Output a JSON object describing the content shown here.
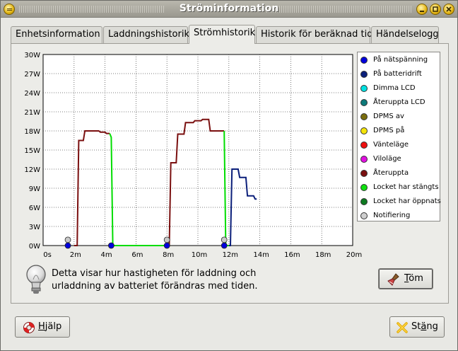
{
  "window": {
    "title": "Ströminformation"
  },
  "tabs": [
    {
      "label": "Enhetsinformation",
      "active": false
    },
    {
      "label": "Laddningshistorik",
      "active": false
    },
    {
      "label": "Strömhistorik",
      "active": true
    },
    {
      "label": "Historik för beräknad tid",
      "active": false
    },
    {
      "label": "Händelselogg",
      "active": false
    }
  ],
  "chart_data": {
    "type": "line",
    "x_tick_labels": [
      "0s",
      "2m",
      "4m",
      "6m",
      "8m",
      "10m",
      "12m",
      "14m",
      "16m",
      "18m",
      "20m"
    ],
    "y_tick_labels": [
      "0W",
      "3W",
      "6W",
      "9W",
      "12W",
      "15W",
      "18W",
      "21W",
      "24W",
      "27W",
      "30W"
    ],
    "xlim_minutes": [
      0,
      20
    ],
    "ylim_watts": [
      0,
      30
    ],
    "grid": true,
    "legend_placement": "right",
    "series": [
      {
        "name": "Återuppta",
        "color": "#7a0f0f",
        "segments": [
          [
            [
              2.0,
              0
            ],
            [
              2.2,
              0
            ],
            [
              2.3,
              16.5
            ],
            [
              2.6,
              16.5
            ],
            [
              2.7,
              18
            ],
            [
              3.6,
              18
            ],
            [
              3.7,
              17.8
            ],
            [
              4.0,
              17.8
            ],
            [
              4.1,
              17.6
            ],
            [
              4.3,
              17.6
            ]
          ],
          [
            [
              8.0,
              0
            ],
            [
              8.15,
              0
            ],
            [
              8.25,
              13
            ],
            [
              8.6,
              13
            ],
            [
              8.7,
              17.5
            ],
            [
              9.1,
              17.5
            ],
            [
              9.2,
              19.3
            ],
            [
              9.7,
              19.3
            ],
            [
              9.8,
              19.6
            ],
            [
              10.2,
              19.6
            ],
            [
              10.3,
              19.8
            ],
            [
              10.7,
              19.8
            ],
            [
              10.8,
              18
            ],
            [
              11.7,
              18
            ]
          ]
        ]
      },
      {
        "name": "Locket har stängts",
        "color": "#00dd00",
        "segments": [
          [
            [
              4.3,
              17.6
            ],
            [
              4.4,
              17
            ],
            [
              4.5,
              0
            ],
            [
              8.0,
              0
            ]
          ],
          [
            [
              11.7,
              18
            ],
            [
              11.8,
              0
            ],
            [
              12.0,
              0
            ]
          ]
        ]
      },
      {
        "name": "På batteridrift",
        "color": "#0b1f7a",
        "segments": [
          [
            [
              12.0,
              0
            ],
            [
              12.1,
              0
            ],
            [
              12.2,
              12
            ],
            [
              12.6,
              12
            ],
            [
              12.7,
              10.7
            ],
            [
              13.1,
              10.7
            ],
            [
              13.2,
              7.8
            ],
            [
              13.6,
              7.8
            ],
            [
              13.7,
              7.3
            ],
            [
              13.8,
              7.3
            ]
          ]
        ]
      }
    ],
    "markers": [
      {
        "series": "På nätspänning",
        "color": "#0000dd",
        "points": [
          [
            1.6,
            0
          ],
          [
            4.4,
            0
          ],
          [
            8.0,
            0
          ],
          [
            11.7,
            0
          ]
        ]
      },
      {
        "series": "Notifiering",
        "color": "#c8c8c8",
        "points": [
          [
            1.6,
            0.9
          ],
          [
            8.0,
            0.9
          ],
          [
            11.7,
            0.9
          ]
        ]
      }
    ]
  },
  "legend": [
    {
      "label": "På nätspänning",
      "color": "#0000dd"
    },
    {
      "label": "På batteridrift",
      "color": "#0b1f7a"
    },
    {
      "label": "Dimma LCD",
      "color": "#00e0e0"
    },
    {
      "label": "Återuppta LCD",
      "color": "#0d7a7a"
    },
    {
      "label": "DPMS av",
      "color": "#7a6d0d"
    },
    {
      "label": "DPMS på",
      "color": "#f5e50a"
    },
    {
      "label": "Vänteläge",
      "color": "#ee1010"
    },
    {
      "label": "Viloläge",
      "color": "#e010e0"
    },
    {
      "label": "Återuppta",
      "color": "#7a0f0f"
    },
    {
      "label": "Locket har stängts",
      "color": "#10e010"
    },
    {
      "label": "Locket har öppnats",
      "color": "#0d7a20"
    },
    {
      "label": "Notifiering",
      "color": "#cfcfcf"
    }
  ],
  "info": {
    "text_line1": "Detta visar hur hastigheten för laddning och",
    "text_line2": "urladdning av batteriet förändras med tiden."
  },
  "buttons": {
    "clear_mnemonic": "T",
    "clear_rest": "öm",
    "help_mnemonic": "H",
    "help_rest": "jälp",
    "close_pre": "St",
    "close_mnemonic": "ä",
    "close_rest": "ng"
  },
  "icons": {
    "window_menu": "window-menu-icon",
    "minimize": "minimize-icon",
    "maximize": "maximize-icon",
    "close": "close-icon",
    "lightbulb": "lightbulb-icon",
    "broom": "broom-icon",
    "lifebuoy": "lifebuoy-icon",
    "x": "close-x-icon"
  }
}
